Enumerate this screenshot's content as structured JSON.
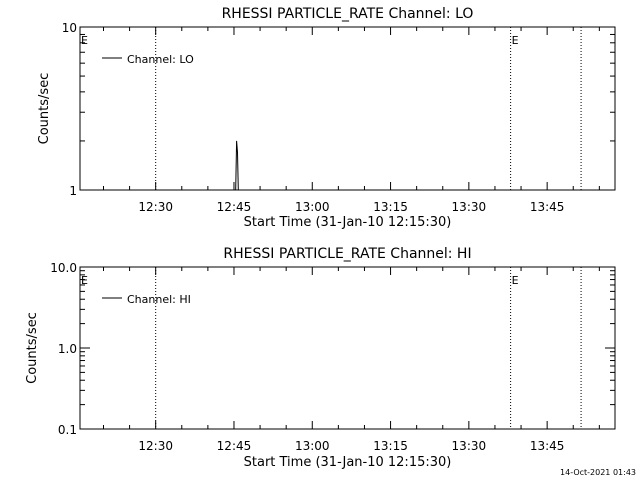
{
  "timestamp": "14-Oct-2021 01:43",
  "chart_data": [
    {
      "type": "line",
      "title": "RHESSI PARTICLE_RATE Channel: LO",
      "xlabel": "Start Time (31-Jan-10 12:15:30)",
      "ylabel": "Counts/sec",
      "y_scale": "log",
      "ylim": [
        1,
        10
      ],
      "y_ticks": [
        {
          "value": 1,
          "label": "1"
        },
        {
          "value": 10,
          "label": "10"
        }
      ],
      "x_range_minutes": [
        "12:15:30",
        "13:58:00"
      ],
      "x_ticks": [
        "12:30",
        "12:45",
        "13:00",
        "13:15",
        "13:30",
        "13:45"
      ],
      "grid": false,
      "legend": "top-left",
      "series": [
        {
          "name": "Channel: LO",
          "x": [
            "12:45:20",
            "12:45:30",
            "12:45:40",
            "12:45:50"
          ],
          "values": [
            1.0,
            2.0,
            1.7,
            1.0
          ]
        }
      ],
      "annotations": [
        {
          "type": "vline",
          "x": "12:30",
          "style": "dotted"
        },
        {
          "type": "vline",
          "x": "13:38",
          "style": "dotted",
          "label": "E"
        },
        {
          "type": "vline",
          "x": "13:51:30",
          "style": "dotted"
        },
        {
          "type": "text",
          "x": "12:15:30",
          "label": "E"
        }
      ]
    },
    {
      "type": "line",
      "title": "RHESSI PARTICLE_RATE Channel: HI",
      "xlabel": "Start Time (31-Jan-10 12:15:30)",
      "ylabel": "Counts/sec",
      "y_scale": "log",
      "ylim": [
        0.1,
        10
      ],
      "y_ticks": [
        {
          "value": 0.1,
          "label": "0.1"
        },
        {
          "value": 1,
          "label": "1.0"
        },
        {
          "value": 10,
          "label": "10.0"
        }
      ],
      "x_range_minutes": [
        "12:15:30",
        "13:58:00"
      ],
      "x_ticks": [
        "12:30",
        "12:45",
        "13:00",
        "13:15",
        "13:30",
        "13:45"
      ],
      "grid": false,
      "legend": "top-left",
      "series": [
        {
          "name": "Channel: HI",
          "x": [],
          "values": []
        }
      ],
      "annotations": [
        {
          "type": "vline",
          "x": "12:30",
          "style": "dotted"
        },
        {
          "type": "vline",
          "x": "13:38",
          "style": "dotted",
          "label": "E"
        },
        {
          "type": "vline",
          "x": "13:51:30",
          "style": "dotted"
        },
        {
          "type": "text",
          "x": "12:15:30",
          "label": "E"
        }
      ]
    }
  ]
}
